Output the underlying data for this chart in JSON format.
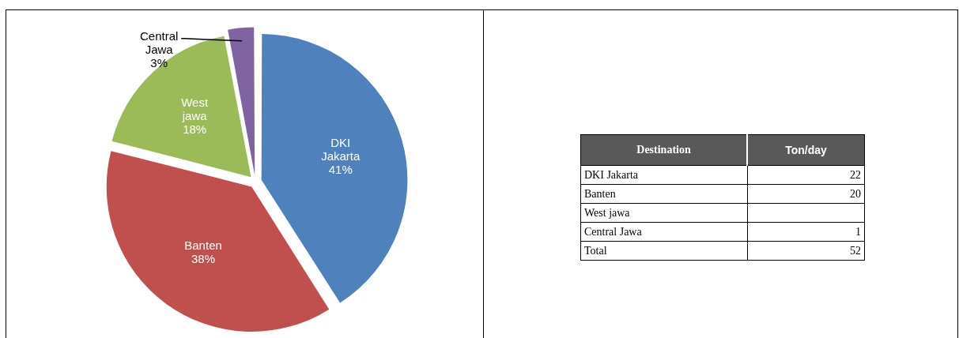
{
  "chart_data": [
    {
      "type": "pie",
      "categories": [
        "DKI Jakarta",
        "Banten",
        "West jawa",
        "Central Jawa"
      ],
      "values": [
        41,
        38,
        18,
        3
      ],
      "value_labels": [
        "41%",
        "38%",
        "18%",
        "3%"
      ],
      "colors": [
        "#4f81bd",
        "#c0504d",
        "#9bbb59",
        "#8064a2"
      ],
      "legend": false
    },
    {
      "type": "other",
      "xlabel": "Destination",
      "ylabel": "Ton/day",
      "categories": [
        "DKI Jakarta",
        "Banten",
        "West jawa",
        "Central Jawa",
        "Total"
      ],
      "values": [
        22,
        20,
        null,
        1,
        52
      ],
      "data_labels": true
    }
  ]
}
